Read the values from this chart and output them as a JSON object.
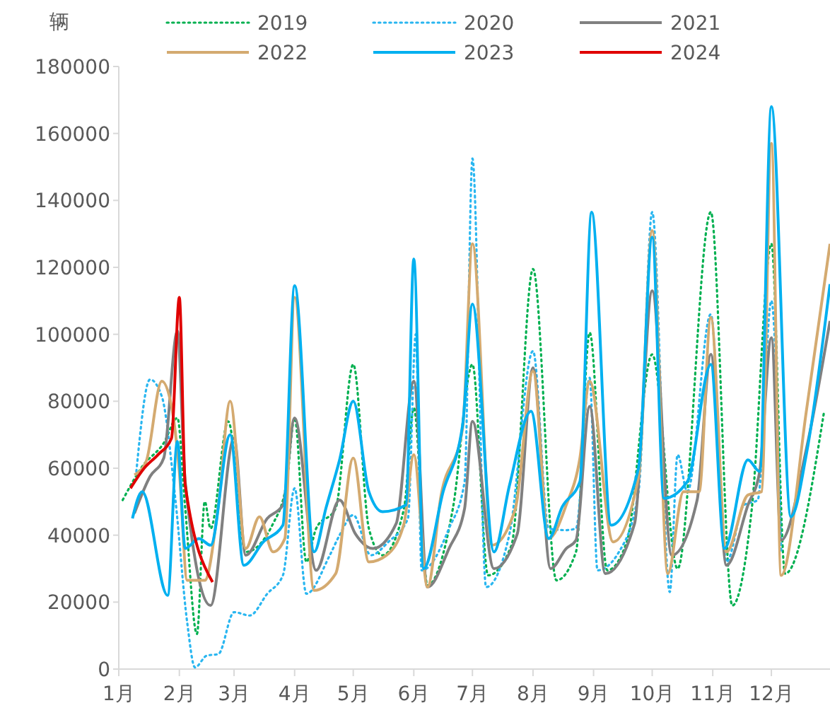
{
  "chart_data": {
    "type": "line",
    "ylabel": "辆",
    "legend": "top",
    "grid": false,
    "xlim": [
      "--01-01",
      "--12-31"
    ],
    "xticks": [
      {
        "value": "--01-01",
        "label": "1月"
      },
      {
        "value": "--02-01",
        "label": "2月"
      },
      {
        "value": "--03-01",
        "label": "3月"
      },
      {
        "value": "--04-01",
        "label": "4月"
      },
      {
        "value": "--05-01",
        "label": "5月"
      },
      {
        "value": "--06-01",
        "label": "6月"
      },
      {
        "value": "--07-01",
        "label": "7月"
      },
      {
        "value": "--08-01",
        "label": "8月"
      },
      {
        "value": "--09-01",
        "label": "9月"
      },
      {
        "value": "--10-01",
        "label": "10月"
      },
      {
        "value": "--11-01",
        "label": "11月"
      },
      {
        "value": "--12-01",
        "label": "12月"
      }
    ],
    "ylim": [
      0,
      180000
    ],
    "yticks": [
      0,
      20000,
      40000,
      60000,
      80000,
      100000,
      120000,
      140000,
      160000,
      180000
    ],
    "series": [
      {
        "name": "2019",
        "color": "#00b050",
        "line_style": "dotted",
        "x": [
          "--01-03",
          "--01-13",
          "--01-24",
          "--01-31",
          "--02-04",
          "--02-10",
          "--02-14",
          "--02-17",
          "--02-26",
          "--03-07",
          "--03-21",
          "--03-28",
          "--04-01",
          "--04-07",
          "--04-12",
          "--04-22",
          "--05-01",
          "--05-09",
          "--05-16",
          "--05-27",
          "--06-01",
          "--06-08",
          "--06-21",
          "--07-01",
          "--07-09",
          "--07-21",
          "--08-01",
          "--08-13",
          "--08-23",
          "--08-30",
          "--09-08",
          "--09-18",
          "--10-01",
          "--10-14",
          "--10-31",
          "--11-11",
          "--11-21",
          "--12-01",
          "--12-08",
          "--12-28"
        ],
        "values": [
          50500,
          60500,
          67500,
          75000,
          48000,
          10500,
          50000,
          42000,
          74000,
          35000,
          43500,
          56000,
          75000,
          32000,
          42000,
          48000,
          91000,
          42000,
          34000,
          48000,
          78000,
          25000,
          48000,
          91000,
          28000,
          37000,
          119500,
          26500,
          35000,
          100500,
          29500,
          38000,
          94000,
          30000,
          136500,
          19000,
          48000,
          127000,
          28500,
          77000
        ]
      },
      {
        "name": "2020",
        "color": "#29b6f0",
        "line_style": "dotted",
        "x": [
          "--01-10",
          "--01-17",
          "--01-23",
          "--01-30",
          "--02-05",
          "--02-09",
          "--02-15",
          "--02-21",
          "--03-01",
          "--03-09",
          "--03-18",
          "--03-26",
          "--04-01",
          "--04-07",
          "--04-19",
          "--04-24",
          "--05-01",
          "--05-10",
          "--05-19",
          "--05-29",
          "--06-02",
          "--06-05",
          "--06-19",
          "--06-27",
          "--07-01",
          "--07-08",
          "--07-20",
          "--08-01",
          "--08-09",
          "--08-18",
          "--08-23",
          "--08-30",
          "--09-03",
          "--09-14",
          "--09-24",
          "--10-01",
          "--10-10",
          "--10-14",
          "--10-19",
          "--10-31",
          "--11-08",
          "--11-17",
          "--11-24",
          "--12-01",
          "--12-06"
        ],
        "values": [
          59000,
          86500,
          81500,
          50500,
          14000,
          500,
          4000,
          4500,
          17000,
          16000,
          22500,
          28000,
          54000,
          22500,
          34000,
          40000,
          46000,
          34000,
          38000,
          45000,
          100000,
          29500,
          42000,
          56000,
          152500,
          24500,
          40500,
          95000,
          42000,
          41500,
          42000,
          87000,
          29500,
          35000,
          53000,
          136500,
          23000,
          64000,
          53000,
          106000,
          32000,
          49000,
          50500,
          110000,
          35000
        ]
      },
      {
        "name": "2021",
        "color": "#808080",
        "x": [
          "--01-09",
          "--01-17",
          "--01-24",
          "--01-31",
          "--02-04",
          "--02-17",
          "--03-01",
          "--03-07",
          "--03-18",
          "--03-26",
          "--04-01",
          "--04-12",
          "--04-24",
          "--05-02",
          "--05-11",
          "--05-23",
          "--06-01",
          "--06-08",
          "--06-19",
          "--06-27",
          "--07-01",
          "--07-12",
          "--07-24",
          "--08-01",
          "--08-10",
          "--08-18",
          "--08-23",
          "--08-30",
          "--09-07",
          "--09-22",
          "--10-01",
          "--10-11",
          "--10-24",
          "--10-31",
          "--11-08",
          "--11-19",
          "--11-25",
          "--12-01",
          "--12-06",
          "--12-19",
          "--12-31"
        ],
        "values": [
          46500,
          57500,
          63000,
          101000,
          56000,
          19000,
          69000,
          34000,
          45000,
          49000,
          75000,
          29500,
          50500,
          40500,
          36000,
          43500,
          86000,
          24500,
          36000,
          48000,
          74000,
          30000,
          40500,
          90000,
          30000,
          36000,
          38500,
          78500,
          28500,
          43500,
          113000,
          34000,
          50500,
          94000,
          31000,
          49000,
          59000,
          99000,
          38500,
          66000,
          104000
        ]
      },
      {
        "name": "2022",
        "color": "#d4aa70",
        "x": [
          "--01-09",
          "--01-15",
          "--01-23",
          "--01-28",
          "--02-01",
          "--02-05",
          "--02-14",
          "--02-21",
          "--02-27",
          "--03-07",
          "--03-14",
          "--03-21",
          "--03-27",
          "--04-01",
          "--04-11",
          "--04-22",
          "--05-01",
          "--05-09",
          "--05-18",
          "--05-27",
          "--06-01",
          "--06-08",
          "--06-15",
          "--06-26",
          "--07-01",
          "--07-11",
          "--07-23",
          "--08-01",
          "--08-09",
          "--08-18",
          "--08-25",
          "--08-30",
          "--09-11",
          "--09-24",
          "--10-01",
          "--10-09",
          "--10-17",
          "--10-25",
          "--10-31",
          "--11-08",
          "--11-19",
          "--11-26",
          "--12-01",
          "--12-06",
          "--12-19",
          "--12-31"
        ],
        "values": [
          58000,
          62000,
          86000,
          78500,
          59000,
          26500,
          26500,
          49000,
          80000,
          36000,
          45500,
          35000,
          39000,
          111000,
          23500,
          28500,
          63000,
          32000,
          34000,
          43500,
          64000,
          24500,
          52000,
          72000,
          127000,
          37000,
          48000,
          89000,
          39000,
          49000,
          63000,
          86000,
          38000,
          57500,
          131000,
          28500,
          53000,
          53000,
          105000,
          35000,
          52000,
          53000,
          157000,
          28000,
          77500,
          127000
        ]
      },
      {
        "name": "2023",
        "color": "#00b0f0",
        "x": [
          "--01-08",
          "--01-13",
          "--01-26",
          "--01-31",
          "--02-04",
          "--02-11",
          "--02-17",
          "--02-27",
          "--03-06",
          "--03-16",
          "--03-26",
          "--04-01",
          "--04-11",
          "--04-17",
          "--04-24",
          "--05-01",
          "--05-09",
          "--05-16",
          "--05-28",
          "--06-01",
          "--06-06",
          "--06-16",
          "--06-26",
          "--07-01",
          "--07-12",
          "--07-20",
          "--07-31",
          "--08-09",
          "--08-16",
          "--08-25",
          "--08-31",
          "--09-10",
          "--09-24",
          "--10-01",
          "--10-07",
          "--10-19",
          "--10-31",
          "--11-07",
          "--11-19",
          "--11-25",
          "--12-01",
          "--12-11",
          "--12-19",
          "--12-31"
        ],
        "values": [
          45000,
          53000,
          22000,
          68000,
          36000,
          39000,
          37000,
          70000,
          31000,
          38000,
          43000,
          114500,
          35000,
          48000,
          62500,
          80000,
          53000,
          47000,
          49000,
          122500,
          30000,
          53000,
          73000,
          109000,
          35000,
          55000,
          77000,
          39000,
          48500,
          56000,
          136500,
          43000,
          60000,
          129000,
          51000,
          56000,
          91000,
          36000,
          62500,
          59000,
          168000,
          45500,
          64500,
          115000
        ]
      },
      {
        "name": "2024",
        "color": "#e00000",
        "x": [
          "--01-07",
          "--01-14",
          "--01-21",
          "--01-28",
          "--02-01",
          "--02-04",
          "--02-18"
        ],
        "values": [
          54000,
          60000,
          64000,
          69000,
          111000,
          55000,
          26000
        ]
      }
    ]
  }
}
